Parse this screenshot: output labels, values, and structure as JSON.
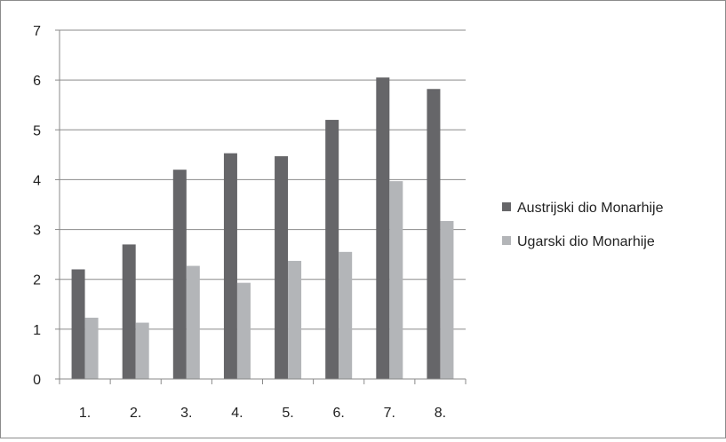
{
  "chart_data": {
    "type": "bar",
    "categories": [
      "1.",
      "2.",
      "3.",
      "4.",
      "5.",
      "6.",
      "7.",
      "8."
    ],
    "series": [
      {
        "name": "Austrijski dio Monarhije",
        "color": "#666669",
        "values": [
          2.2,
          2.7,
          4.2,
          4.53,
          4.47,
          5.2,
          6.05,
          5.82
        ]
      },
      {
        "name": "Ugarski dio Monarhije",
        "color": "#b3b5b8",
        "values": [
          1.23,
          1.13,
          2.27,
          1.93,
          2.37,
          2.55,
          3.97,
          3.17
        ]
      }
    ],
    "ylim": [
      0,
      7
    ],
    "yticks": [
      "0",
      "1",
      "2",
      "3",
      "4",
      "5",
      "6",
      "7"
    ],
    "grid": true,
    "legend_position": "right"
  }
}
